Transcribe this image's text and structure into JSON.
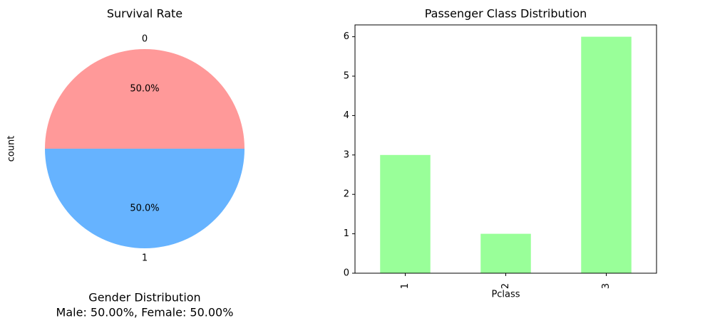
{
  "chart_data": [
    {
      "type": "pie",
      "title": "Survival Rate",
      "ylabel": "count",
      "categories": [
        "0",
        "1"
      ],
      "values": [
        50,
        50
      ],
      "value_labels": [
        "50.0%",
        "50.0%"
      ],
      "colors": [
        "#ff9999",
        "#66b3ff"
      ],
      "annotations": [
        "Gender Distribution",
        "Male: 50.00%, Female: 50.00%"
      ]
    },
    {
      "type": "bar",
      "title": "Passenger Class Distribution",
      "xlabel": "Pclass",
      "categories": [
        "1",
        "2",
        "3"
      ],
      "values": [
        3,
        1,
        6
      ],
      "color": "#99ff99",
      "ylim": [
        0,
        6.3
      ],
      "yticks": [
        0,
        1,
        2,
        3,
        4,
        5,
        6
      ]
    }
  ]
}
